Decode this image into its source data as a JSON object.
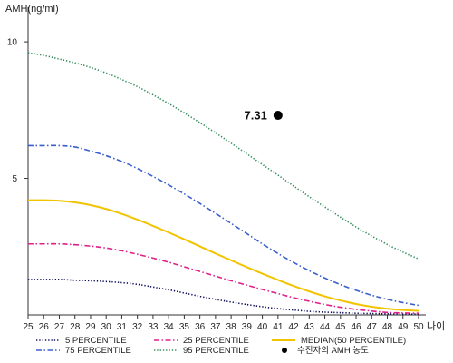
{
  "chart_data": {
    "type": "line",
    "title": "",
    "ylabel": "AMH(ng/ml)",
    "xlabel": "나이",
    "xlim": [
      25,
      50
    ],
    "ylim": [
      0,
      11
    ],
    "xticks": [
      25,
      26,
      27,
      28,
      29,
      30,
      31,
      32,
      33,
      34,
      35,
      36,
      37,
      38,
      39,
      40,
      41,
      42,
      43,
      44,
      45,
      46,
      47,
      48,
      49,
      50
    ],
    "yticks": [
      5,
      10
    ],
    "grid": false,
    "legend_position": "bottom",
    "series": [
      {
        "name": "5 PERCENTILE",
        "color": "#0d0d5c",
        "style": "dotted",
        "x": [
          25,
          26,
          27,
          28,
          29,
          30,
          31,
          32,
          33,
          34,
          35,
          36,
          37,
          38,
          39,
          40,
          41,
          42,
          43,
          44,
          45,
          46,
          47,
          48,
          49,
          50
        ],
        "y": [
          1.3,
          1.3,
          1.3,
          1.27,
          1.25,
          1.22,
          1.18,
          1.12,
          1.02,
          0.92,
          0.8,
          0.68,
          0.57,
          0.47,
          0.38,
          0.3,
          0.23,
          0.18,
          0.13,
          0.1,
          0.08,
          0.06,
          0.05,
          0.04,
          0.03,
          0.03
        ]
      },
      {
        "name": "25 PERCENTILE",
        "color": "#e0208a",
        "style": "dashdot",
        "x": [
          25,
          26,
          27,
          28,
          29,
          30,
          31,
          32,
          33,
          34,
          35,
          36,
          37,
          38,
          39,
          40,
          41,
          42,
          43,
          44,
          45,
          46,
          47,
          48,
          49,
          50
        ],
        "y": [
          2.6,
          2.6,
          2.6,
          2.57,
          2.52,
          2.45,
          2.35,
          2.22,
          2.08,
          1.93,
          1.76,
          1.59,
          1.42,
          1.25,
          1.09,
          0.93,
          0.78,
          0.63,
          0.5,
          0.38,
          0.28,
          0.2,
          0.14,
          0.09,
          0.07,
          0.06
        ]
      },
      {
        "name": "MEDIAN(50 PERCENTILE)",
        "color": "#f2c400",
        "style": "solid",
        "x": [
          25,
          26,
          27,
          28,
          29,
          30,
          31,
          32,
          33,
          34,
          35,
          36,
          37,
          38,
          39,
          40,
          41,
          42,
          43,
          44,
          45,
          46,
          47,
          48,
          49,
          50
        ],
        "y": [
          4.2,
          4.2,
          4.18,
          4.12,
          4.02,
          3.88,
          3.7,
          3.49,
          3.26,
          3.02,
          2.77,
          2.51,
          2.25,
          2.0,
          1.75,
          1.51,
          1.28,
          1.06,
          0.86,
          0.68,
          0.53,
          0.4,
          0.3,
          0.23,
          0.18,
          0.15
        ]
      },
      {
        "name": "75 PERCENTILE",
        "color": "#3a5fcd",
        "style": "dashdot",
        "x": [
          25,
          26,
          27,
          28,
          29,
          30,
          31,
          32,
          33,
          34,
          35,
          36,
          37,
          38,
          39,
          40,
          41,
          42,
          43,
          44,
          45,
          46,
          47,
          48,
          49,
          50
        ],
        "y": [
          6.2,
          6.2,
          6.2,
          6.15,
          6.0,
          5.83,
          5.62,
          5.36,
          5.07,
          4.76,
          4.43,
          4.08,
          3.72,
          3.35,
          2.98,
          2.6,
          2.25,
          1.92,
          1.62,
          1.35,
          1.11,
          0.9,
          0.72,
          0.57,
          0.45,
          0.35
        ]
      },
      {
        "name": "95 PERCENTILE",
        "color": "#2e8b57",
        "style": "dotted",
        "x": [
          25,
          26,
          27,
          28,
          29,
          30,
          31,
          32,
          33,
          34,
          35,
          36,
          37,
          38,
          39,
          40,
          41,
          42,
          43,
          44,
          45,
          46,
          47,
          48,
          49,
          50
        ],
        "y": [
          9.6,
          9.5,
          9.37,
          9.23,
          9.06,
          8.86,
          8.62,
          8.36,
          8.06,
          7.74,
          7.4,
          7.04,
          6.67,
          6.29,
          5.9,
          5.51,
          5.12,
          4.72,
          4.33,
          3.95,
          3.58,
          3.22,
          2.89,
          2.58,
          2.3,
          2.05
        ]
      }
    ],
    "points": [
      {
        "name": "수진자의 AMH 농도",
        "x": 41,
        "y": 7.31,
        "label": "7.31",
        "color": "#000000"
      }
    ]
  }
}
